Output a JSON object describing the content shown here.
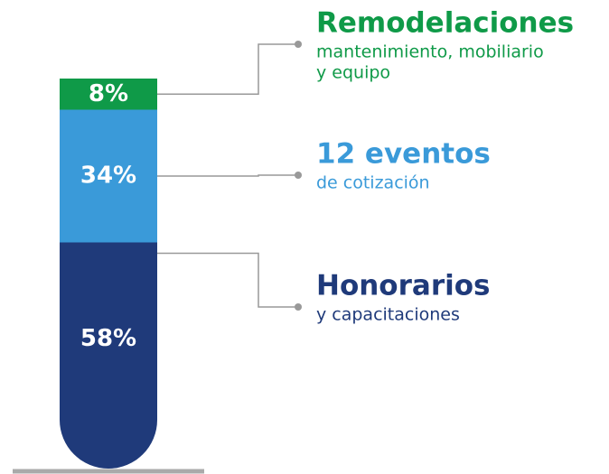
{
  "chart_data": {
    "type": "bar",
    "stacked": true,
    "ylim": [
      0,
      100
    ],
    "series": [
      {
        "name": "Honorarios",
        "detail": [
          "y capacitaciones"
        ],
        "color": "#1f3a7a",
        "values": [
          58
        ],
        "value_labels": [
          "58%"
        ]
      },
      {
        "name": "12 eventos",
        "detail": [
          "de cotización"
        ],
        "color": "#3a9ad9",
        "values": [
          34
        ],
        "value_labels": [
          "34%"
        ]
      },
      {
        "name": "Remodelaciones",
        "detail": [
          "mantenimiento, mobiliario",
          "y equipo"
        ],
        "color": "#0f9a48",
        "values": [
          8
        ],
        "value_labels": [
          "8%"
        ]
      }
    ]
  }
}
